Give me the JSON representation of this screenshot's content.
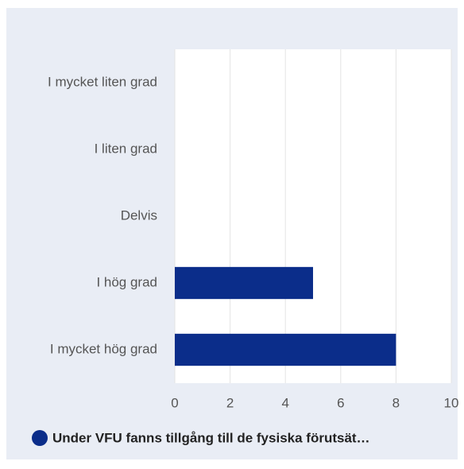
{
  "chart_data": {
    "type": "bar",
    "orientation": "horizontal",
    "categories": [
      "I mycket liten grad",
      "I liten grad",
      "Delvis",
      "I hög grad",
      "I mycket hög grad"
    ],
    "series": [
      {
        "name": "Under VFU fanns tillgång till de fysiska förutsät…",
        "color": "#0b2d8a",
        "values": [
          0,
          0,
          0,
          5,
          8
        ]
      }
    ],
    "xlim": [
      0,
      10
    ],
    "xticks": [
      0,
      2,
      4,
      6,
      8,
      10
    ],
    "grid": true,
    "legend": "bottom"
  }
}
